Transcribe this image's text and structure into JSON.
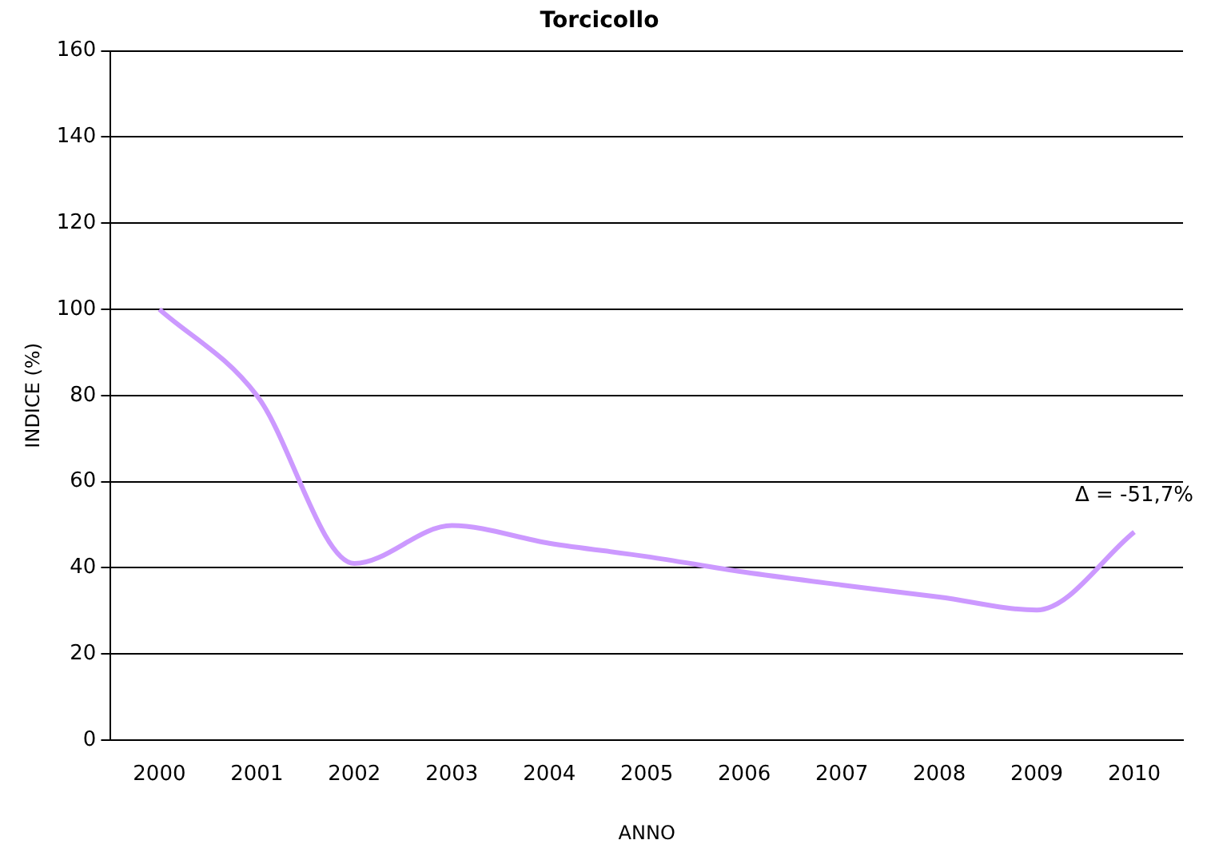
{
  "chart_data": {
    "type": "line",
    "title": "Torcicollo",
    "xlabel": "ANNO",
    "ylabel": "INDICE (%)",
    "categories": [
      "2000",
      "2001",
      "2002",
      "2003",
      "2004",
      "2005",
      "2006",
      "2007",
      "2008",
      "2009",
      "2010"
    ],
    "series": [
      {
        "color": "#cc99ff",
        "values": [
          100,
          80,
          41,
          49.8,
          45.7,
          42.6,
          39,
          36,
          33.2,
          30.2,
          48.3
        ]
      }
    ],
    "ylim": [
      0,
      160
    ],
    "yticks": [
      0,
      20,
      40,
      60,
      80,
      100,
      120,
      140,
      160
    ],
    "grid": "y",
    "legend": false,
    "marker": "none",
    "line_style": "solid",
    "annotations": [
      {
        "text": "Δ = -51,7%",
        "x": "2010",
        "y": 48.3
      }
    ]
  }
}
